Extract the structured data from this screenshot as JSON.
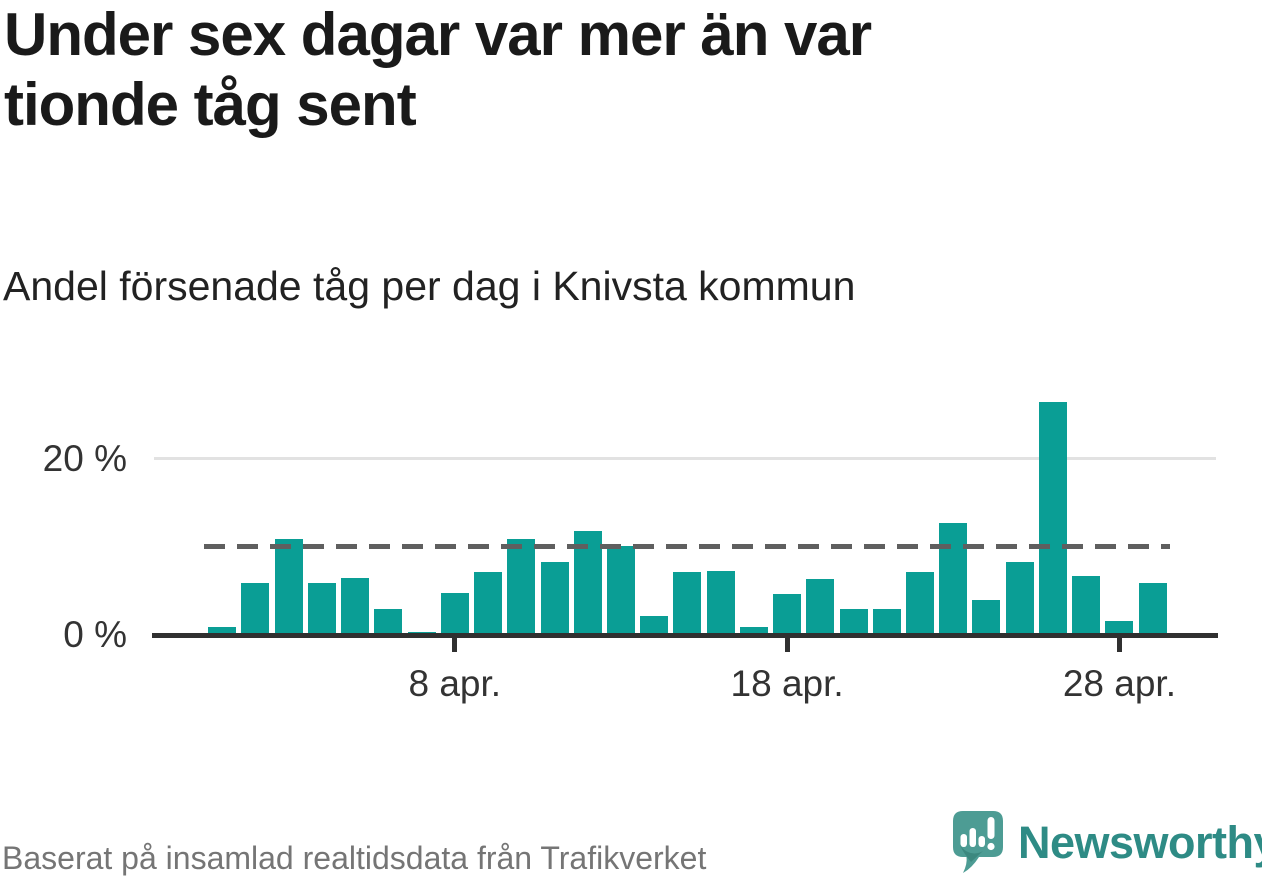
{
  "header": {
    "title_lines": [
      "Under sex dagar var mer än var",
      "tionde tåg sent"
    ],
    "subtitle": "Andel försenade tåg per dag i Knivsta kommun"
  },
  "chart_data": {
    "type": "bar",
    "title": "Under sex dagar var mer än var tionde tåg sent",
    "subtitle": "Andel försenade tåg per dag i Knivsta kommun",
    "unit": "%",
    "categories": [
      "1 apr.",
      "2 apr.",
      "3 apr.",
      "4 apr.",
      "5 apr.",
      "6 apr.",
      "7 apr.",
      "8 apr.",
      "9 apr.",
      "10 apr.",
      "11 apr.",
      "12 apr.",
      "13 apr.",
      "14 apr.",
      "15 apr.",
      "16 apr.",
      "17 apr.",
      "18 apr.",
      "19 apr.",
      "20 apr.",
      "21 apr.",
      "22 apr.",
      "23 apr.",
      "24 apr.",
      "25 apr.",
      "26 apr.",
      "27 apr.",
      "28 apr.",
      "29 apr."
    ],
    "values": [
      1.0,
      6.0,
      11.0,
      6.0,
      6.5,
      3.0,
      0.5,
      4.9,
      7.2,
      11.0,
      8.4,
      11.9,
      10.2,
      2.3,
      7.2,
      7.4,
      1.0,
      4.7,
      6.4,
      3.0,
      3.0,
      7.2,
      12.8,
      4.1,
      8.4,
      26.4,
      6.8,
      1.7,
      6.0
    ],
    "ylim": [
      0,
      27
    ],
    "yticks": [
      {
        "label": "0 %",
        "value": 0
      },
      {
        "label": "20 %",
        "value": 20
      }
    ],
    "xticks": [
      {
        "label": "8 apr.",
        "day": 8
      },
      {
        "label": "18 apr.",
        "day": 18
      },
      {
        "label": "28 apr.",
        "day": 28
      }
    ],
    "reference_line": {
      "value": 10,
      "style": "dashed"
    },
    "grid": "single-horizontal-at-20",
    "legend": "none",
    "bar_color": "#0a9e95"
  },
  "footer": {
    "source": "Baserat på insamlad realtidsdata från Trafikverket",
    "brand": "Newsworthy"
  },
  "colors": {
    "bar": "#0a9e95",
    "gridline": "#e2e2e2",
    "axis": "#303030",
    "reference_dash": "#5f5f5f",
    "title_text": "#1a1a1a",
    "label_text": "#333333",
    "source_text": "#757575",
    "logo_bubble": "#4d9c94",
    "logo_bubble_shadow": "#3c887f",
    "brand_text": "#2e8b85"
  }
}
